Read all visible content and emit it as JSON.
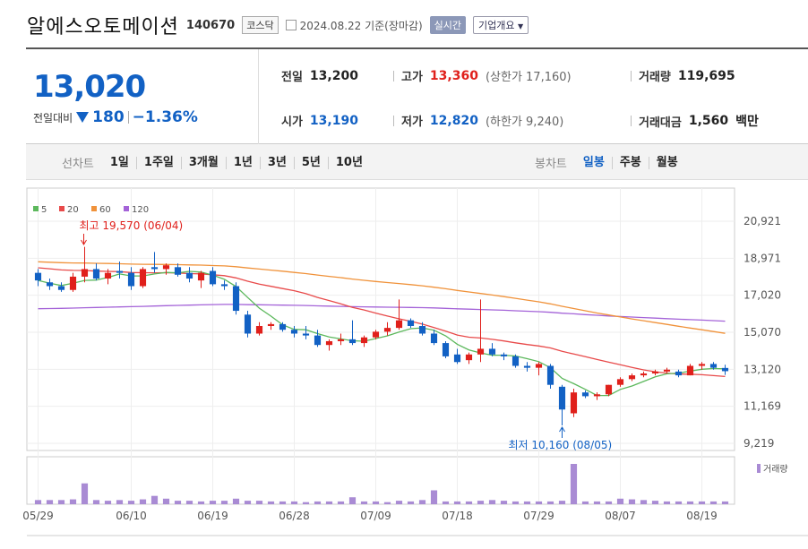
{
  "header": {
    "company": "알에스오토메이션",
    "code": "140670",
    "market": "코스닥",
    "date": "2024.08.22 기준(장마감)",
    "realtime": "실시간",
    "ir": "기업개요"
  },
  "summary": {
    "price": "13,020",
    "change_label": "전일대비",
    "change_amount": "180",
    "change_pct": "−1.36%",
    "prev_label": "전일",
    "prev": "13,200",
    "open_label": "시가",
    "open": "13,190",
    "high_label": "고가",
    "high": "13,360",
    "upper_limit": "(상한가 17,160)",
    "low_label": "저가",
    "low": "12,820",
    "lower_limit": "(하한가 9,240)",
    "volume_label": "거래량",
    "volume": "119,695",
    "amount_label": "거래대금",
    "amount": "1,560",
    "amount_unit": "백만"
  },
  "periods": {
    "title": "선차트",
    "items": [
      "1일",
      "1주일",
      "3개월",
      "1년",
      "3년",
      "5년",
      "10년"
    ]
  },
  "candles_tabs": {
    "title": "봉차트",
    "items": [
      "일봉",
      "주봉",
      "월봉"
    ],
    "active": "일봉"
  },
  "chart_data": {
    "type": "candlestick",
    "legend": [
      {
        "name": "5",
        "color": "#5cb85c"
      },
      {
        "name": "20",
        "color": "#e84a4a"
      },
      {
        "name": "60",
        "color": "#f0923a"
      },
      {
        "name": "120",
        "color": "#a463d8"
      }
    ],
    "y_ticks": [
      "20,921",
      "18,971",
      "17,020",
      "15,070",
      "13,120",
      "11,169",
      "9,219"
    ],
    "ylim": [
      9219,
      20921
    ],
    "x_ticks": [
      "05/29",
      "06/10",
      "06/19",
      "06/28",
      "07/09",
      "07/18",
      "07/29",
      "08/07",
      "08/19"
    ],
    "x_tick_index": [
      0,
      8,
      15,
      22,
      29,
      36,
      43,
      50,
      57
    ],
    "high_annotation": "최고 19,570 (06/04)",
    "low_annotation": "최저 10,160 (08/05)",
    "volume_label": "거래량",
    "up_color": "#e0201b",
    "down_color": "#1261c4",
    "candles": [
      {
        "o": 18200,
        "h": 18400,
        "l": 17500,
        "c": 17800
      },
      {
        "o": 17700,
        "h": 17900,
        "l": 17300,
        "c": 17500
      },
      {
        "o": 17500,
        "h": 17700,
        "l": 17200,
        "c": 17300
      },
      {
        "o": 17300,
        "h": 18200,
        "l": 17200,
        "c": 18000
      },
      {
        "o": 18000,
        "h": 19570,
        "l": 17700,
        "c": 18400
      },
      {
        "o": 18400,
        "h": 18700,
        "l": 17800,
        "c": 17900
      },
      {
        "o": 17900,
        "h": 18400,
        "l": 17600,
        "c": 18200
      },
      {
        "o": 18300,
        "h": 18800,
        "l": 17900,
        "c": 18200
      },
      {
        "o": 18200,
        "h": 18500,
        "l": 17300,
        "c": 17500
      },
      {
        "o": 17500,
        "h": 18500,
        "l": 17400,
        "c": 18400
      },
      {
        "o": 18500,
        "h": 19300,
        "l": 18200,
        "c": 18400
      },
      {
        "o": 18400,
        "h": 18700,
        "l": 18100,
        "c": 18600
      },
      {
        "o": 18500,
        "h": 18700,
        "l": 18000,
        "c": 18100
      },
      {
        "o": 18200,
        "h": 18500,
        "l": 17700,
        "c": 17900
      },
      {
        "o": 17800,
        "h": 18300,
        "l": 17400,
        "c": 18200
      },
      {
        "o": 18300,
        "h": 18500,
        "l": 17500,
        "c": 17600
      },
      {
        "o": 17600,
        "h": 17800,
        "l": 17300,
        "c": 17500
      },
      {
        "o": 17500,
        "h": 17700,
        "l": 16000,
        "c": 16200
      },
      {
        "o": 16000,
        "h": 16200,
        "l": 14800,
        "c": 15000
      },
      {
        "o": 15000,
        "h": 15600,
        "l": 14900,
        "c": 15400
      },
      {
        "o": 15400,
        "h": 15600,
        "l": 15200,
        "c": 15500
      },
      {
        "o": 15500,
        "h": 15600,
        "l": 15100,
        "c": 15200
      },
      {
        "o": 15200,
        "h": 15400,
        "l": 14800,
        "c": 15000
      },
      {
        "o": 15000,
        "h": 15400,
        "l": 14700,
        "c": 14900
      },
      {
        "o": 14900,
        "h": 15200,
        "l": 14300,
        "c": 14400
      },
      {
        "o": 14400,
        "h": 14700,
        "l": 14100,
        "c": 14600
      },
      {
        "o": 14600,
        "h": 15000,
        "l": 14400,
        "c": 14700
      },
      {
        "o": 14700,
        "h": 15700,
        "l": 14400,
        "c": 14500
      },
      {
        "o": 14500,
        "h": 14900,
        "l": 14300,
        "c": 14800
      },
      {
        "o": 14800,
        "h": 15200,
        "l": 14700,
        "c": 15100
      },
      {
        "o": 15100,
        "h": 15600,
        "l": 14900,
        "c": 15300
      },
      {
        "o": 15300,
        "h": 16800,
        "l": 15200,
        "c": 15700
      },
      {
        "o": 15700,
        "h": 15800,
        "l": 15300,
        "c": 15400
      },
      {
        "o": 15400,
        "h": 15600,
        "l": 14900,
        "c": 15000
      },
      {
        "o": 15000,
        "h": 15200,
        "l": 14400,
        "c": 14500
      },
      {
        "o": 14500,
        "h": 14600,
        "l": 13700,
        "c": 13800
      },
      {
        "o": 13900,
        "h": 14200,
        "l": 13400,
        "c": 13500
      },
      {
        "o": 13600,
        "h": 14000,
        "l": 13400,
        "c": 13900
      },
      {
        "o": 13900,
        "h": 16800,
        "l": 13500,
        "c": 14200
      },
      {
        "o": 14200,
        "h": 14500,
        "l": 13800,
        "c": 13900
      },
      {
        "o": 13900,
        "h": 14000,
        "l": 13600,
        "c": 13800
      },
      {
        "o": 13800,
        "h": 13900,
        "l": 13200,
        "c": 13300
      },
      {
        "o": 13300,
        "h": 13500,
        "l": 13000,
        "c": 13200
      },
      {
        "o": 13200,
        "h": 13500,
        "l": 12800,
        "c": 13400
      },
      {
        "o": 13300,
        "h": 13400,
        "l": 12100,
        "c": 12300
      },
      {
        "o": 12200,
        "h": 12300,
        "l": 10160,
        "c": 11000
      },
      {
        "o": 10800,
        "h": 12100,
        "l": 10600,
        "c": 11900
      },
      {
        "o": 11900,
        "h": 12000,
        "l": 11600,
        "c": 11700
      },
      {
        "o": 11700,
        "h": 11900,
        "l": 11500,
        "c": 11800
      },
      {
        "o": 11800,
        "h": 12300,
        "l": 11700,
        "c": 12300
      },
      {
        "o": 12300,
        "h": 12700,
        "l": 12200,
        "c": 12600
      },
      {
        "o": 12600,
        "h": 12900,
        "l": 12500,
        "c": 12800
      },
      {
        "o": 12800,
        "h": 13000,
        "l": 12700,
        "c": 12900
      },
      {
        "o": 12900,
        "h": 13100,
        "l": 12800,
        "c": 13000
      },
      {
        "o": 13000,
        "h": 13200,
        "l": 12900,
        "c": 13100
      },
      {
        "o": 13000,
        "h": 13100,
        "l": 12700,
        "c": 12800
      },
      {
        "o": 12800,
        "h": 13400,
        "l": 12800,
        "c": 13300
      },
      {
        "o": 13300,
        "h": 13500,
        "l": 13100,
        "c": 13400
      },
      {
        "o": 13400,
        "h": 13500,
        "l": 13100,
        "c": 13200
      },
      {
        "o": 13190,
        "h": 13360,
        "l": 12820,
        "c": 13020
      }
    ],
    "volume": [
      6,
      6,
      6,
      7,
      30,
      6,
      5,
      6,
      5,
      7,
      12,
      8,
      5,
      5,
      4,
      5,
      5,
      8,
      5,
      5,
      4,
      4,
      4,
      3,
      4,
      4,
      4,
      10,
      4,
      4,
      3,
      5,
      4,
      6,
      20,
      4,
      4,
      4,
      5,
      6,
      5,
      4,
      4,
      4,
      4,
      5,
      58,
      4,
      4,
      4,
      8,
      7,
      6,
      5,
      4,
      4,
      4,
      4,
      4,
      4
    ]
  }
}
